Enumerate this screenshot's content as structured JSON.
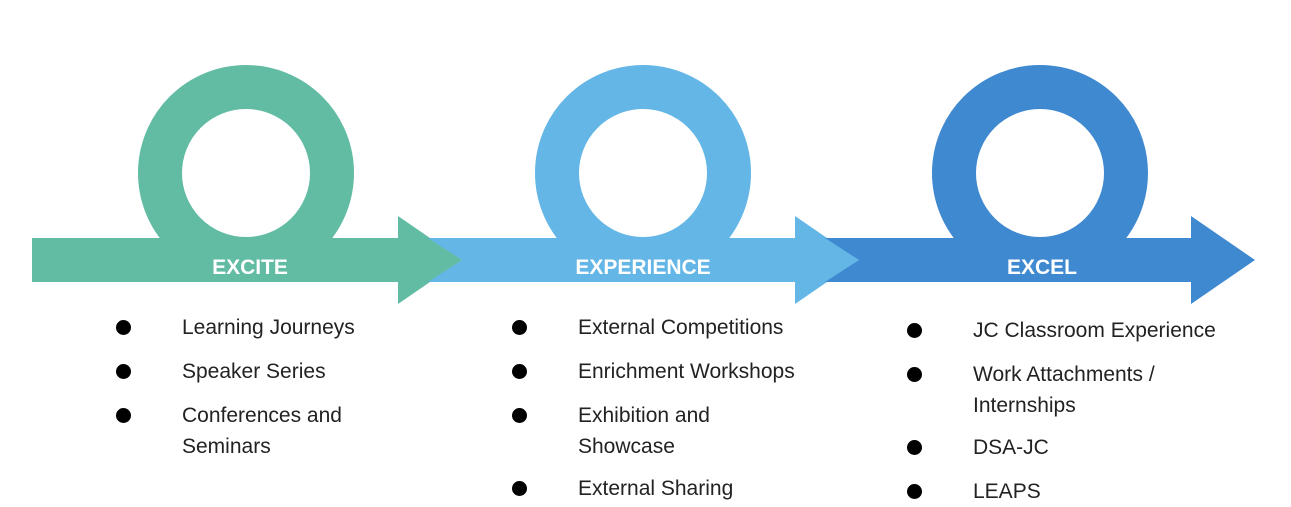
{
  "stages": [
    {
      "label": "EXCITE",
      "color": "#62bca4",
      "items": [
        "Learning Journeys",
        "Speaker Series",
        "Conferences and Seminars"
      ]
    },
    {
      "label": "EXPERIENCE",
      "color": "#63b6e6",
      "items": [
        "External Competitions",
        "Enrichment Workshops",
        "Exhibition and Showcase",
        "External Sharing"
      ]
    },
    {
      "label": "EXCEL",
      "color": "#3f89d0",
      "items": [
        "JC Classroom Experience",
        "Work Attachments / Internships",
        "DSA-JC",
        "LEAPS"
      ]
    }
  ],
  "label_color": "#ffffff"
}
